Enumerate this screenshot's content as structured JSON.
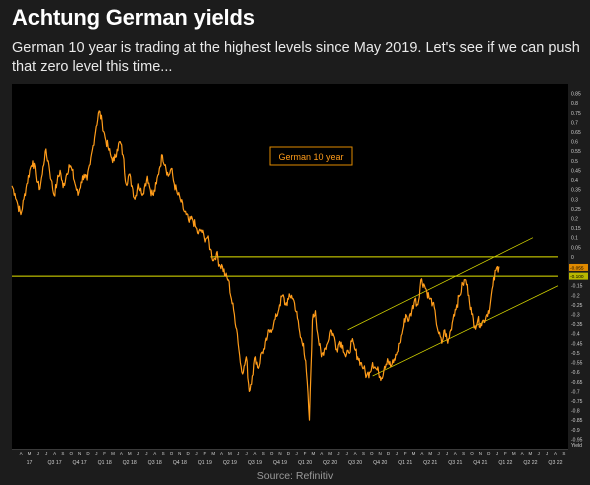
{
  "header": {
    "title": "Achtung German yields",
    "subtitle": "German 10 year is trading at the highest levels since May 2019. Let's see if we can push that zero level this time..."
  },
  "footer": {
    "source": "Source: Refinitiv"
  },
  "colors": {
    "background": "#1c1c1c",
    "plot_background": "#000000",
    "series": "#ff9c1a",
    "horizontal_lines": "#e6e600",
    "channel_lines": "#cfcf00",
    "value_tag": "#e08a00",
    "axis_text": "#cfcfcf"
  },
  "chart_data": {
    "type": "line",
    "title": "",
    "xlabel": "",
    "ylabel": "",
    "ylim": [
      -1.0,
      0.9
    ],
    "grid": false,
    "annotation": "German 10 year",
    "y_ticks": [
      "0.85",
      "0.8",
      "0.75",
      "0.7",
      "0.65",
      "0.6",
      "0.55",
      "0.5",
      "0.45",
      "0.4",
      "0.35",
      "0.3",
      "0.25",
      "0.2",
      "0.15",
      "0.1",
      "0.05",
      "0",
      "-0.05",
      "-0.1",
      "-0.15",
      "-0.2",
      "-0.25",
      "-0.3",
      "-0.35",
      "-0.4",
      "-0.45",
      "-0.5",
      "-0.55",
      "-0.6",
      "-0.65",
      "-0.7",
      "-0.75",
      "-0.8",
      "-0.85",
      "-0.9",
      "-0.95"
    ],
    "y_tick_values": [
      0.85,
      0.8,
      0.75,
      0.7,
      0.65,
      0.6,
      0.55,
      0.5,
      0.45,
      0.4,
      0.35,
      0.3,
      0.25,
      0.2,
      0.15,
      0.1,
      0.05,
      0,
      -0.05,
      -0.1,
      -0.15,
      -0.2,
      -0.25,
      -0.3,
      -0.35,
      -0.4,
      -0.45,
      -0.5,
      -0.55,
      -0.6,
      -0.65,
      -0.7,
      -0.75,
      -0.8,
      -0.85,
      -0.9,
      -0.95
    ],
    "y_axis_unit": "Yield",
    "x_quarter_labels": [
      {
        "label": "17",
        "t": 2017.25
      },
      {
        "label": "Q3 17",
        "t": 2017.5
      },
      {
        "label": "Q4 17",
        "t": 2017.75
      },
      {
        "label": "Q1 18",
        "t": 2018.0
      },
      {
        "label": "Q2 18",
        "t": 2018.25
      },
      {
        "label": "Q3 18",
        "t": 2018.5
      },
      {
        "label": "Q4 18",
        "t": 2018.75
      },
      {
        "label": "Q1 19",
        "t": 2019.0
      },
      {
        "label": "Q2 19",
        "t": 2019.25
      },
      {
        "label": "Q3 19",
        "t": 2019.5
      },
      {
        "label": "Q4 19",
        "t": 2019.75
      },
      {
        "label": "Q1 20",
        "t": 2020.0
      },
      {
        "label": "Q2 20",
        "t": 2020.25
      },
      {
        "label": "Q3 20",
        "t": 2020.5
      },
      {
        "label": "Q4 20",
        "t": 2020.75
      },
      {
        "label": "Q1 21",
        "t": 2021.0
      },
      {
        "label": "Q2 21",
        "t": 2021.25
      },
      {
        "label": "Q3 21",
        "t": 2021.5
      },
      {
        "label": "Q4 21",
        "t": 2021.75
      },
      {
        "label": "Q1 22",
        "t": 2022.0
      },
      {
        "label": "Q2 22",
        "t": 2022.25
      },
      {
        "label": "Q3 22",
        "t": 2022.5
      }
    ],
    "x_month_letters": [
      "A",
      "M",
      "J",
      "J",
      "A",
      "S",
      "O",
      "N",
      "D",
      "J",
      "F",
      "M",
      "A",
      "M",
      "J",
      "J",
      "A",
      "S",
      "O",
      "N",
      "D",
      "J",
      "F",
      "M",
      "A",
      "M",
      "J",
      "J",
      "A",
      "S",
      "O",
      "N",
      "D",
      "J",
      "F",
      "M",
      "A",
      "M",
      "J",
      "J",
      "A",
      "S",
      "O",
      "N",
      "D",
      "J",
      "F",
      "M",
      "A",
      "M",
      "J",
      "J",
      "A",
      "S",
      "O",
      "N",
      "D",
      "J",
      "F",
      "M",
      "A",
      "M",
      "J",
      "J",
      "A",
      "S",
      "O",
      "N",
      "D",
      "J",
      "F",
      "M",
      "A",
      "M",
      "J",
      "J",
      "A",
      "S",
      "O",
      "N",
      "D",
      "J",
      "F",
      "M",
      "A",
      "M",
      "J",
      "J",
      "A",
      "S",
      "O"
    ],
    "x_range": [
      2017.2,
      2022.75
    ],
    "series": [
      {
        "name": "German 10 year",
        "points": [
          [
            2017.2,
            0.37
          ],
          [
            2017.23,
            0.33
          ],
          [
            2017.26,
            0.27
          ],
          [
            2017.29,
            0.22
          ],
          [
            2017.32,
            0.3
          ],
          [
            2017.35,
            0.38
          ],
          [
            2017.38,
            0.45
          ],
          [
            2017.41,
            0.5
          ],
          [
            2017.44,
            0.43
          ],
          [
            2017.47,
            0.35
          ],
          [
            2017.5,
            0.43
          ],
          [
            2017.53,
            0.55
          ],
          [
            2017.56,
            0.5
          ],
          [
            2017.59,
            0.4
          ],
          [
            2017.62,
            0.32
          ],
          [
            2017.65,
            0.39
          ],
          [
            2017.68,
            0.45
          ],
          [
            2017.71,
            0.36
          ],
          [
            2017.74,
            0.42
          ],
          [
            2017.77,
            0.48
          ],
          [
            2017.8,
            0.45
          ],
          [
            2017.83,
            0.38
          ],
          [
            2017.86,
            0.32
          ],
          [
            2017.89,
            0.39
          ],
          [
            2017.92,
            0.43
          ],
          [
            2017.95,
            0.4
          ],
          [
            2017.98,
            0.48
          ],
          [
            2018.01,
            0.58
          ],
          [
            2018.04,
            0.68
          ],
          [
            2018.07,
            0.76
          ],
          [
            2018.1,
            0.7
          ],
          [
            2018.13,
            0.62
          ],
          [
            2018.16,
            0.57
          ],
          [
            2018.19,
            0.52
          ],
          [
            2018.22,
            0.5
          ],
          [
            2018.25,
            0.56
          ],
          [
            2018.28,
            0.6
          ],
          [
            2018.31,
            0.53
          ],
          [
            2018.34,
            0.38
          ],
          [
            2018.37,
            0.43
          ],
          [
            2018.4,
            0.37
          ],
          [
            2018.43,
            0.3
          ],
          [
            2018.46,
            0.38
          ],
          [
            2018.49,
            0.33
          ],
          [
            2018.52,
            0.36
          ],
          [
            2018.55,
            0.42
          ],
          [
            2018.58,
            0.35
          ],
          [
            2018.61,
            0.32
          ],
          [
            2018.64,
            0.38
          ],
          [
            2018.67,
            0.46
          ],
          [
            2018.7,
            0.53
          ],
          [
            2018.73,
            0.48
          ],
          [
            2018.76,
            0.42
          ],
          [
            2018.79,
            0.46
          ],
          [
            2018.82,
            0.38
          ],
          [
            2018.85,
            0.33
          ],
          [
            2018.88,
            0.3
          ],
          [
            2018.91,
            0.25
          ],
          [
            2018.94,
            0.22
          ],
          [
            2018.97,
            0.18
          ],
          [
            2019.0,
            0.2
          ],
          [
            2019.03,
            0.16
          ],
          [
            2019.06,
            0.12
          ],
          [
            2019.09,
            0.14
          ],
          [
            2019.12,
            0.1
          ],
          [
            2019.15,
            0.1
          ],
          [
            2019.18,
            0.04
          ],
          [
            2019.21,
            -0.02
          ],
          [
            2019.24,
            0.02
          ],
          [
            2019.27,
            -0.04
          ],
          [
            2019.3,
            -0.05
          ],
          [
            2019.33,
            -0.1
          ],
          [
            2019.36,
            -0.12
          ],
          [
            2019.39,
            -0.22
          ],
          [
            2019.42,
            -0.3
          ],
          [
            2019.45,
            -0.4
          ],
          [
            2019.48,
            -0.55
          ],
          [
            2019.51,
            -0.6
          ],
          [
            2019.54,
            -0.52
          ],
          [
            2019.57,
            -0.7
          ],
          [
            2019.6,
            -0.62
          ],
          [
            2019.63,
            -0.52
          ],
          [
            2019.66,
            -0.58
          ],
          [
            2019.69,
            -0.5
          ],
          [
            2019.72,
            -0.48
          ],
          [
            2019.75,
            -0.41
          ],
          [
            2019.78,
            -0.38
          ],
          [
            2019.81,
            -0.35
          ],
          [
            2019.84,
            -0.31
          ],
          [
            2019.87,
            -0.25
          ],
          [
            2019.9,
            -0.2
          ],
          [
            2019.93,
            -0.25
          ],
          [
            2019.96,
            -0.22
          ],
          [
            2019.99,
            -0.2
          ],
          [
            2020.02,
            -0.24
          ],
          [
            2020.05,
            -0.32
          ],
          [
            2020.08,
            -0.42
          ],
          [
            2020.11,
            -0.45
          ],
          [
            2020.14,
            -0.6
          ],
          [
            2020.17,
            -0.85
          ],
          [
            2020.2,
            -0.33
          ],
          [
            2020.23,
            -0.28
          ],
          [
            2020.26,
            -0.43
          ],
          [
            2020.29,
            -0.52
          ],
          [
            2020.32,
            -0.48
          ],
          [
            2020.35,
            -0.45
          ],
          [
            2020.38,
            -0.38
          ],
          [
            2020.41,
            -0.41
          ],
          [
            2020.44,
            -0.48
          ],
          [
            2020.47,
            -0.44
          ],
          [
            2020.5,
            -0.46
          ],
          [
            2020.53,
            -0.52
          ],
          [
            2020.56,
            -0.5
          ],
          [
            2020.59,
            -0.44
          ],
          [
            2020.62,
            -0.48
          ],
          [
            2020.65,
            -0.52
          ],
          [
            2020.68,
            -0.55
          ],
          [
            2020.71,
            -0.58
          ],
          [
            2020.74,
            -0.62
          ],
          [
            2020.77,
            -0.6
          ],
          [
            2020.8,
            -0.55
          ],
          [
            2020.83,
            -0.58
          ],
          [
            2020.86,
            -0.6
          ],
          [
            2020.89,
            -0.63
          ],
          [
            2020.92,
            -0.57
          ],
          [
            2020.95,
            -0.53
          ],
          [
            2020.98,
            -0.57
          ],
          [
            2021.01,
            -0.55
          ],
          [
            2021.04,
            -0.51
          ],
          [
            2021.07,
            -0.45
          ],
          [
            2021.1,
            -0.38
          ],
          [
            2021.13,
            -0.3
          ],
          [
            2021.16,
            -0.33
          ],
          [
            2021.19,
            -0.28
          ],
          [
            2021.22,
            -0.22
          ],
          [
            2021.25,
            -0.25
          ],
          [
            2021.28,
            -0.12
          ],
          [
            2021.31,
            -0.14
          ],
          [
            2021.34,
            -0.18
          ],
          [
            2021.37,
            -0.22
          ],
          [
            2021.4,
            -0.24
          ],
          [
            2021.43,
            -0.32
          ],
          [
            2021.46,
            -0.4
          ],
          [
            2021.49,
            -0.45
          ],
          [
            2021.52,
            -0.38
          ],
          [
            2021.55,
            -0.45
          ],
          [
            2021.58,
            -0.38
          ],
          [
            2021.61,
            -0.3
          ],
          [
            2021.64,
            -0.25
          ],
          [
            2021.67,
            -0.2
          ],
          [
            2021.7,
            -0.14
          ],
          [
            2021.73,
            -0.12
          ],
          [
            2021.76,
            -0.2
          ],
          [
            2021.79,
            -0.3
          ],
          [
            2021.82,
            -0.36
          ],
          [
            2021.85,
            -0.33
          ],
          [
            2021.88,
            -0.35
          ],
          [
            2021.91,
            -0.33
          ],
          [
            2021.94,
            -0.3
          ],
          [
            2021.97,
            -0.26
          ],
          [
            2022.0,
            -0.15
          ],
          [
            2022.03,
            -0.07
          ],
          [
            2022.06,
            -0.05
          ]
        ]
      }
    ],
    "reference_lines": [
      {
        "y": 0.0,
        "label": "0",
        "t_start": 2019.18,
        "t_end": 2022.65
      },
      {
        "y": -0.1,
        "label": "",
        "t_start": 2017.2,
        "t_end": 2022.65
      }
    ],
    "channel_lines": [
      {
        "from": [
          2020.55,
          -0.38
        ],
        "to": [
          2022.4,
          0.1
        ]
      },
      {
        "from": [
          2020.8,
          -0.62
        ],
        "to": [
          2022.65,
          -0.15
        ]
      }
    ],
    "value_tags": [
      {
        "y": -0.055,
        "label": "-0.055"
      },
      {
        "y": -0.1,
        "label": "-0.100"
      }
    ]
  }
}
